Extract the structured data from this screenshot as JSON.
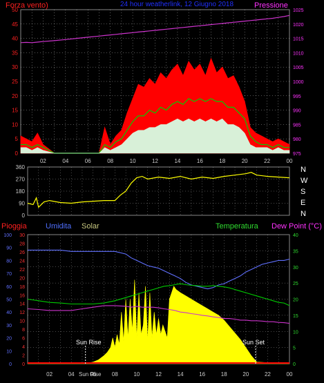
{
  "header": {
    "left_label": "Forza vento)",
    "center_title": "24 hour weatherlink, 12 Giugno 2018",
    "right_label": "Pressione"
  },
  "compass": [
    "N",
    "W",
    "S",
    "E",
    "N"
  ],
  "bottom_header": {
    "rain": "Pioggia",
    "humidity": "Umidita",
    "solar": "Solar",
    "temperature": "Temperatura",
    "dew": "Dew Point (°C)"
  },
  "annotations": {
    "sunrise": "Sun Rise",
    "sunset": "Sun Set",
    "overlap": "Sun Rise"
  },
  "colors": {
    "wind_gust": "#ff0000",
    "wind_avg": "#00d000",
    "wind_speed": "#d8f0d8",
    "pressure": "#cc33cc",
    "direction": "#ffff00",
    "humidity": "#6070ff",
    "temperature": "#00cc00",
    "dew": "#cc33cc",
    "solar": "#ffff00",
    "rain": "#ff0000",
    "axis": "#cccccc",
    "grid": "#ffffff"
  },
  "chart_data": [
    {
      "type": "area",
      "name_left": "Forza vento)",
      "name_right": "Pressione",
      "x_ticks": [
        "02",
        "04",
        "06",
        "08",
        "10",
        "12",
        "14",
        "16",
        "18",
        "20",
        "22",
        "00"
      ],
      "y_left_ticks": [
        0,
        5,
        10,
        15,
        20,
        25,
        30,
        35,
        40,
        45,
        50
      ],
      "y_right_ticks": [
        975,
        980,
        985,
        990,
        995,
        1000,
        1005,
        1010,
        1015,
        1020,
        1025
      ],
      "ylim_left": [
        0,
        50
      ],
      "ylim_right": [
        975,
        1025
      ],
      "x_hours": [
        0,
        0.5,
        1,
        1.5,
        2,
        3,
        4,
        5,
        6,
        7,
        7.5,
        8,
        8.5,
        9,
        9.5,
        10,
        10.5,
        11,
        11.5,
        12,
        12.5,
        13,
        13.5,
        14,
        14.5,
        15,
        15.5,
        16,
        16.5,
        17,
        17.5,
        18,
        18.5,
        19,
        19.5,
        20,
        20.5,
        21,
        21.5,
        22,
        22.5,
        23,
        23.5,
        24
      ],
      "gust": [
        6,
        5,
        4,
        7,
        3,
        0,
        0,
        0,
        0,
        0,
        9,
        3,
        6,
        8,
        14,
        19,
        24,
        23,
        26,
        24,
        28,
        26,
        29,
        31,
        27,
        32,
        29,
        31,
        27,
        33,
        28,
        30,
        26,
        27,
        23,
        18,
        9,
        7,
        6,
        5,
        4,
        5,
        4,
        3
      ],
      "avg": [
        3,
        3,
        2,
        3,
        2,
        0,
        0,
        0,
        0,
        0,
        3,
        2,
        4,
        5,
        8,
        11,
        13,
        13,
        15,
        14,
        16,
        15,
        17,
        18,
        17,
        19,
        18,
        19,
        18,
        19,
        18,
        18,
        16,
        16,
        14,
        12,
        6,
        4,
        3,
        3,
        2,
        3,
        2,
        2
      ],
      "speed": [
        2,
        2,
        1,
        2,
        1,
        0,
        0,
        0,
        0,
        0,
        2,
        1,
        2,
        3,
        5,
        7,
        8,
        8,
        9,
        9,
        10,
        10,
        11,
        12,
        11,
        12,
        11,
        12,
        11,
        12,
        11,
        12,
        10,
        10,
        9,
        7,
        3,
        2,
        2,
        2,
        1,
        2,
        1,
        1
      ],
      "pressure": [
        1013.5,
        1013.6,
        1013.5,
        1013.7,
        1013.9,
        1014.2,
        1014.6,
        1015.0,
        1015.4,
        1015.8,
        1016.0,
        1016.2,
        1016.4,
        1016.6,
        1016.8,
        1017.0,
        1017.2,
        1017.4,
        1017.6,
        1017.8,
        1018.0,
        1018.2,
        1018.4,
        1018.6,
        1018.8,
        1019.0,
        1019.2,
        1019.4,
        1019.6,
        1019.8,
        1020.0,
        1020.2,
        1020.4,
        1020.6,
        1020.8,
        1021.0,
        1021.2,
        1021.4,
        1021.6,
        1021.8,
        1022.0,
        1022.3,
        1022.6,
        1023.0
      ]
    },
    {
      "type": "line",
      "name": "direction",
      "x_ticks": [
        "02",
        "04",
        "06",
        "08",
        "10",
        "12",
        "14",
        "16",
        "18",
        "20",
        "22",
        "00"
      ],
      "y_ticks": [
        0,
        90,
        180,
        270,
        360
      ],
      "ylim": [
        0,
        360
      ],
      "x_hours": [
        0,
        0.5,
        0.8,
        1,
        1.5,
        2,
        3,
        4,
        5,
        6,
        7,
        7.5,
        8,
        8.5,
        9,
        9.5,
        10,
        10.5,
        11,
        12,
        13,
        14,
        15,
        16,
        17,
        18,
        19,
        20,
        20.5,
        21,
        22,
        23,
        24
      ],
      "values": [
        90,
        80,
        130,
        60,
        100,
        110,
        95,
        90,
        100,
        105,
        110,
        110,
        110,
        150,
        180,
        240,
        280,
        290,
        270,
        285,
        275,
        290,
        270,
        285,
        275,
        290,
        300,
        310,
        320,
        300,
        290,
        285,
        280
      ]
    },
    {
      "type": "area",
      "x_ticks": [
        "02",
        "04",
        "06",
        "08",
        "10",
        "12",
        "14",
        "16",
        "18",
        "20",
        "22",
        "00"
      ],
      "y_humidity_ticks": [
        0,
        10,
        20,
        30,
        40,
        50,
        60,
        70,
        80,
        90,
        100
      ],
      "y_rain_ticks": [
        0,
        2,
        4,
        6,
        8,
        10,
        12,
        14,
        16,
        18,
        20,
        22,
        24,
        26,
        28,
        30
      ],
      "y_temp_ticks": [
        0,
        5,
        10,
        15,
        20,
        25,
        30,
        35,
        40
      ],
      "ylim_humidity": [
        0,
        100
      ],
      "ylim_temp": [
        0,
        40
      ],
      "x_hours": [
        0,
        1,
        2,
        3,
        4,
        5,
        6,
        7,
        8,
        9,
        9.5,
        10,
        10.5,
        11,
        11.5,
        12,
        12.5,
        13,
        13.5,
        14,
        14.5,
        15,
        15.5,
        16,
        16.5,
        17,
        17.5,
        18,
        18.5,
        19,
        19.5,
        20,
        20.5,
        21,
        21.5,
        22,
        22.5,
        23,
        23.5,
        24
      ],
      "humidity": [
        88,
        88,
        88,
        88,
        87,
        87,
        87,
        87,
        87,
        85,
        82,
        80,
        78,
        76,
        75,
        74,
        72,
        70,
        68,
        66,
        63,
        61,
        60,
        59,
        58,
        59,
        61,
        62,
        64,
        66,
        68,
        71,
        73,
        75,
        77,
        78,
        79,
        80,
        80,
        81
      ],
      "temperature": [
        20,
        19.5,
        19,
        18.8,
        18.5,
        18.5,
        18.5,
        18.8,
        19.5,
        20.5,
        21,
        21.5,
        22,
        22.5,
        23,
        23.5,
        24,
        24.2,
        24.5,
        24.8,
        24.5,
        24.3,
        24.2,
        24,
        24,
        24.2,
        24,
        23.8,
        23.5,
        23,
        22.5,
        22,
        21.5,
        21,
        20.5,
        20,
        19.5,
        19,
        18.8,
        18
      ],
      "dew": [
        17,
        16.8,
        16.5,
        16.5,
        16.5,
        17,
        17.5,
        18,
        18,
        17.8,
        17.5,
        17.8,
        17.5,
        17.5,
        17.5,
        17.3,
        17,
        16.8,
        16.5,
        16,
        15.8,
        15.5,
        15.3,
        15,
        14.8,
        14.5,
        14.3,
        14,
        14,
        13.8,
        13.5,
        13.5,
        13.3,
        13.3,
        13.2,
        13,
        13,
        12.8,
        12.7,
        12.5
      ],
      "solar_hours": [
        0,
        4.8,
        5.5,
        6,
        6.5,
        7,
        7.3,
        7.6,
        7.8,
        8,
        8.2,
        8.4,
        8.6,
        8.8,
        9,
        9.2,
        9.4,
        9.6,
        9.8,
        10,
        10.2,
        10.4,
        10.6,
        10.8,
        11,
        11.2,
        11.4,
        11.6,
        11.8,
        12,
        12.2,
        12.4,
        12.6,
        12.8,
        13,
        13.2,
        13.4,
        13.6,
        14,
        14.5,
        15,
        15.5,
        16,
        16.5,
        17,
        17.5,
        18,
        18.5,
        19,
        19.5,
        20,
        20.5,
        21,
        24
      ],
      "solar_temp_scale": [
        0,
        0,
        0.2,
        0.5,
        1.2,
        2.5,
        3.5,
        5,
        8,
        5,
        9,
        6,
        16,
        7,
        20,
        8,
        20,
        10,
        26,
        8,
        22,
        9,
        12,
        24,
        7,
        22,
        8,
        16,
        9,
        14,
        9,
        12,
        10,
        8,
        20,
        22,
        24,
        23,
        22,
        21,
        20,
        19,
        18,
        17,
        16,
        15,
        13.5,
        11.5,
        9.5,
        7.5,
        5,
        2.5,
        0.5,
        0
      ],
      "rain": 0,
      "sunrise_hour": 5.3,
      "sunset_hour": 20.9
    }
  ]
}
